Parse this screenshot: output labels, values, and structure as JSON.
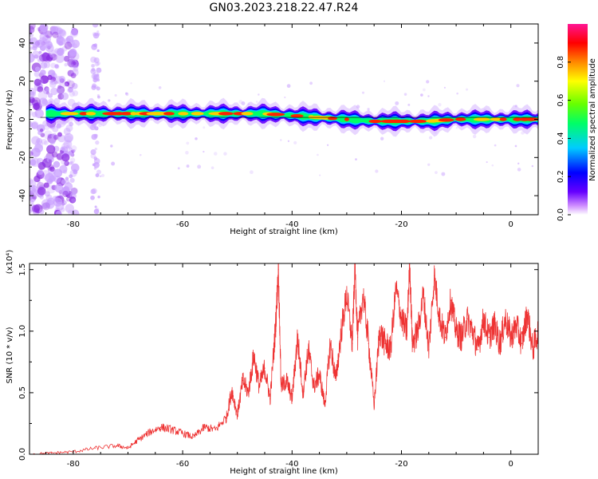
{
  "title": "GN03.2023.218.22.47.R24",
  "chart_data": [
    {
      "type": "heatmap",
      "xlabel": "Height of straight line (km)",
      "ylabel": "Frequency (Hz)",
      "xlim": [
        -88,
        5
      ],
      "ylim": [
        -50,
        50
      ],
      "xticks": [
        -80,
        -60,
        -40,
        -20,
        0
      ],
      "yticks": [
        -40,
        -20,
        0,
        20,
        40
      ],
      "colorbar": {
        "label": "Normalized spectral amplitude",
        "range": [
          0,
          1
        ],
        "ticks": [
          "0.0",
          "0.2",
          "0.4",
          "0.6",
          "0.8"
        ],
        "colors": [
          "#ffffff",
          "#cc88ff",
          "#6600ff",
          "#0000ff",
          "#00ccff",
          "#00ff66",
          "#66ff00",
          "#ffff00",
          "#ff8800",
          "#ff0000",
          "#ff1493"
        ]
      },
      "ridge": {
        "description_points_x": [
          -86,
          -80,
          -70,
          -60,
          -50,
          -45,
          -40,
          -35,
          -30,
          -25,
          -20,
          -15,
          -10,
          -5,
          0,
          4
        ],
        "frequency_hz": [
          3,
          3,
          3,
          3,
          3,
          3,
          2,
          1,
          0,
          -1,
          -1,
          -1,
          0,
          0,
          0,
          0
        ]
      }
    },
    {
      "type": "line",
      "xlabel": "Height of straight line (km)",
      "ylabel": "SNR (10 * v/v)",
      "yscale_label": "(x10⁴)",
      "xlim": [
        -88,
        5
      ],
      "ylim": [
        0,
        1.55
      ],
      "xticks": [
        -80,
        -60,
        -40,
        -20,
        0
      ],
      "yticks": [
        "0.0",
        "0.5",
        "1.0",
        "1.5"
      ],
      "series": [
        {
          "color": "#ee3333",
          "x": [
            -88,
            -84,
            -80,
            -76,
            -72,
            -70,
            -68,
            -66,
            -64,
            -62,
            -60,
            -58,
            -56,
            -54,
            -52,
            -51,
            -50,
            -49,
            -48,
            -47,
            -46,
            -45,
            -44,
            -43,
            -42.5,
            -42,
            -41,
            -40,
            -39,
            -38,
            -37,
            -36,
            -35,
            -34,
            -33,
            -32,
            -31,
            -30,
            -29,
            -28.5,
            -28,
            -27,
            -26,
            -25,
            -24,
            -23,
            -22,
            -21,
            -20,
            -19,
            -18.5,
            -18,
            -17,
            -16,
            -15,
            -14,
            -13,
            -12,
            -11,
            -10,
            -9,
            -8,
            -7,
            -6,
            -5,
            -4,
            -3,
            -2,
            -1,
            0,
            1,
            2,
            3,
            4,
            5
          ],
          "y": [
            0.0,
            0.01,
            0.02,
            0.05,
            0.07,
            0.05,
            0.12,
            0.18,
            0.22,
            0.2,
            0.17,
            0.14,
            0.22,
            0.2,
            0.3,
            0.52,
            0.32,
            0.6,
            0.5,
            0.8,
            0.55,
            0.7,
            0.45,
            1.05,
            1.5,
            0.55,
            0.6,
            0.45,
            0.95,
            0.5,
            0.85,
            0.55,
            0.65,
            0.4,
            0.9,
            0.6,
            1.0,
            1.3,
            0.9,
            1.52,
            0.95,
            1.3,
            0.9,
            0.4,
            1.0,
            0.9,
            0.85,
            1.35,
            1.1,
            1.0,
            1.55,
            0.9,
            1.0,
            1.3,
            0.85,
            1.45,
            1.1,
            0.95,
            1.25,
            1.0,
            0.95,
            1.1,
            1.0,
            0.85,
            1.1,
            0.95,
            1.05,
            0.9,
            1.1,
            0.95,
            1.05,
            0.9,
            1.15,
            0.85,
            1.0
          ]
        }
      ]
    }
  ]
}
